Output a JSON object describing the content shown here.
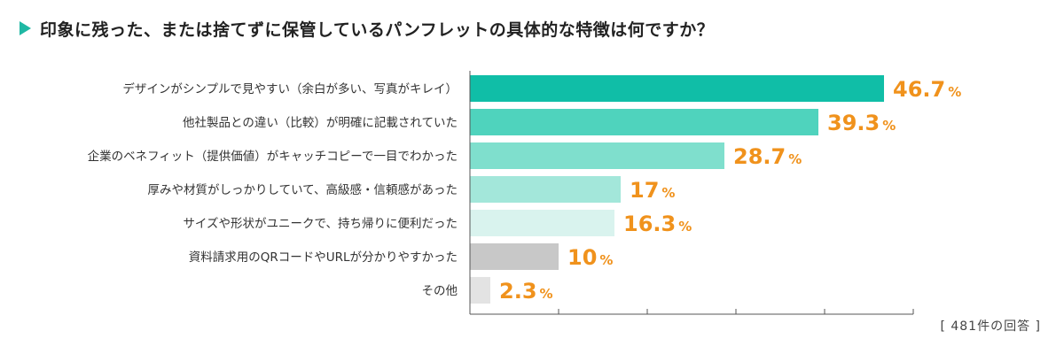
{
  "header": {
    "title": "印象に残った、または捨てずに保管しているパンフレットの具体的な特徴は何ですか？"
  },
  "note": "[ 481件の回答 ]",
  "colors": {
    "title_marker": "#1fb8a4",
    "value_label": "#f0921c",
    "axis": "#555555"
  },
  "chart_data": {
    "type": "bar",
    "orientation": "horizontal",
    "categories": [
      "デザインがシンプルで見やすい（余白が多い、写真がキレイ）",
      "他社製品との違い（比較）が明確に記載されていた",
      "企業のベネフィット（提供価値）がキャッチコピーで一目でわかった",
      "厚みや材質がしっかりしていて、高級感・信頼感があった",
      "サイズや形状がユニークで、持ち帰りに便利だった",
      "資料請求用のQRコードやURLが分かりやすかった",
      "その他"
    ],
    "values": [
      46.7,
      39.3,
      28.7,
      17,
      16.3,
      10,
      2.3
    ],
    "value_labels": [
      "46.7",
      "39.3",
      "28.7",
      "17",
      "16.3",
      "10",
      "2.3"
    ],
    "unit": "%",
    "bar_colors": [
      "#10bea7",
      "#4fd3bd",
      "#7fdfcd",
      "#a3e7da",
      "#d9f3ee",
      "#c8c8c8",
      "#e3e3e3"
    ],
    "xlim": [
      0,
      50
    ],
    "grid": "ticks-only"
  }
}
